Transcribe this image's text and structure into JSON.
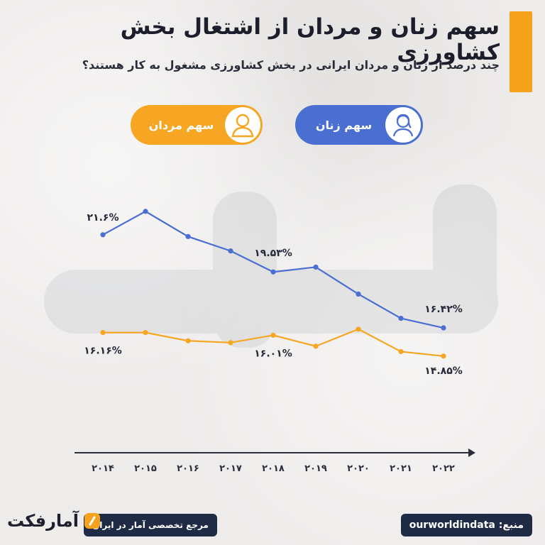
{
  "header": {
    "title": "سهم زنان و مردان از اشتغال بخش کشاورزی",
    "subtitle": "چند درصد از زنان و مردان ایرانی در بخش کشاورزی مشغول به کار هستند؟"
  },
  "legend": {
    "women_label": "سهم زنان",
    "men_label": "سهم مردان",
    "women_icon": "woman-avatar-icon",
    "men_icon": "man-avatar-icon"
  },
  "colors": {
    "women": "#4a6fd1",
    "men": "#f6a623",
    "accent": "#f6a21d",
    "dark": "#1f2a45",
    "axis": "#2b2e3b"
  },
  "chart_data": {
    "type": "line",
    "x": [
      "۲۰۱۴",
      "۲۰۱۵",
      "۲۰۱۶",
      "۲۰۱۷",
      "۲۰۱۸",
      "۲۰۱۹",
      "۲۰۲۰",
      "۲۰۲۱",
      "۲۰۲۲"
    ],
    "series": [
      {
        "name": "سهم زنان",
        "values": [
          21.6,
          22.9,
          21.5,
          20.7,
          19.53,
          19.8,
          18.3,
          16.95,
          16.42
        ],
        "data_labels": [
          {
            "index": 0,
            "text": "۲۱.۶%"
          },
          {
            "index": 4,
            "text": "۱۹.۵۳%"
          },
          {
            "index": 8,
            "text": "۱۶.۴۲%"
          }
        ]
      },
      {
        "name": "سهم مردان",
        "values": [
          16.16,
          16.16,
          15.7,
          15.6,
          16.01,
          15.4,
          16.35,
          15.1,
          14.85
        ],
        "data_labels": [
          {
            "index": 0,
            "text": "۱۶.۱۶%"
          },
          {
            "index": 4,
            "text": "۱۶.۰۱%"
          },
          {
            "index": 8,
            "text": "۱۴.۸۵%"
          }
        ]
      }
    ],
    "ylim": [
      12,
      24
    ],
    "grid": false,
    "legend_position": "top"
  },
  "footer": {
    "source": "منبع: ourworldindata",
    "reference": "مرجع تخصصی آمار در ایران",
    "brand": "آمارفکت"
  }
}
